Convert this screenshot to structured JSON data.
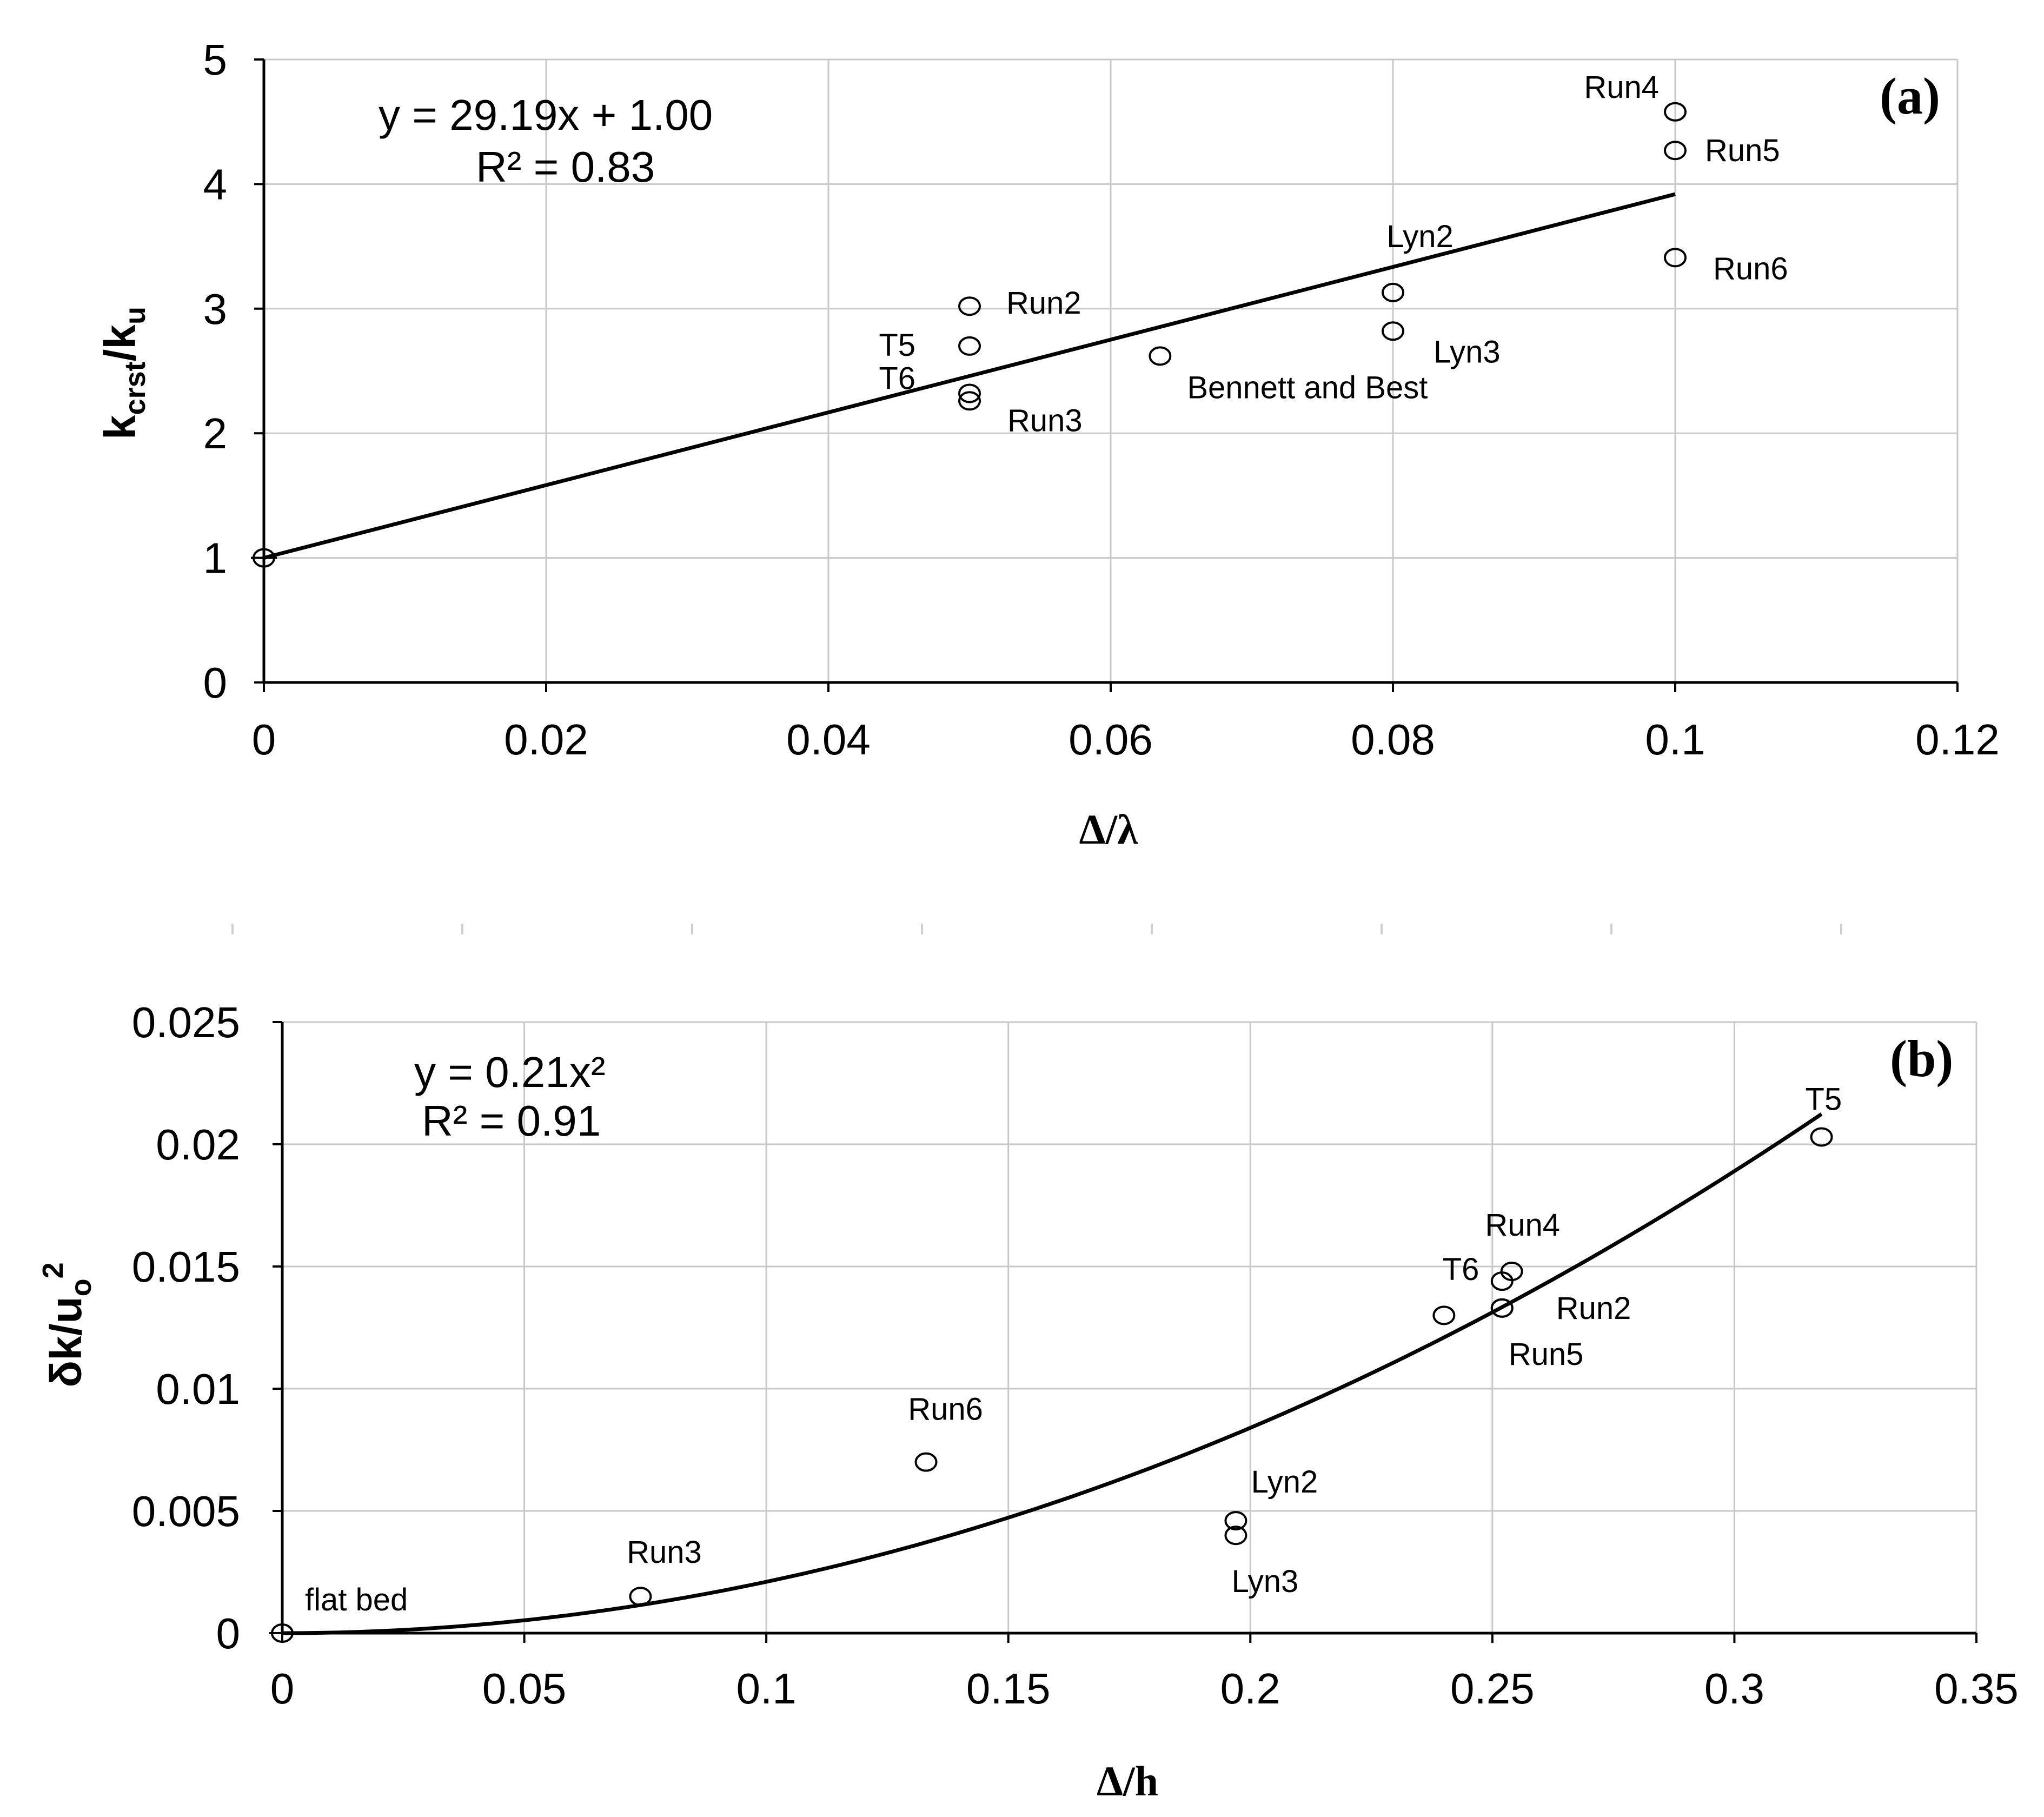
{
  "chart_data": [
    {
      "type": "scatter",
      "panel_label": "(a)",
      "xlabel": "Δ/λ",
      "ylabel_main": "k",
      "ylabel_sub1": "crst",
      "ylabel_mid": "/k",
      "ylabel_sub2": "u",
      "xlim": [
        0,
        0.12
      ],
      "ylim": [
        0,
        5
      ],
      "x_ticks": [
        0,
        0.02,
        0.04,
        0.06,
        0.08,
        0.1,
        0.12
      ],
      "x_tick_labels": [
        "0",
        "0.02",
        "0.04",
        "0.06",
        "0.08",
        "0.1",
        "0.12"
      ],
      "y_ticks": [
        0,
        1,
        2,
        3,
        4,
        5
      ],
      "y_tick_labels": [
        "0",
        "1",
        "2",
        "3",
        "4",
        "5"
      ],
      "equation": "y = 29.19x + 1.00",
      "r_squared": "R² = 0.83",
      "fit": {
        "kind": "linear",
        "slope": 29.19,
        "intercept": 1.0,
        "x_range": [
          0,
          0.1
        ]
      },
      "points": [
        {
          "x": 0.0,
          "y": 1.0,
          "label": ""
        },
        {
          "x": 0.05,
          "y": 3.02,
          "label": "Run2"
        },
        {
          "x": 0.05,
          "y": 2.7,
          "label": "T5"
        },
        {
          "x": 0.05,
          "y": 2.32,
          "label": "T6"
        },
        {
          "x": 0.05,
          "y": 2.26,
          "label": "Run3"
        },
        {
          "x": 0.0635,
          "y": 2.62,
          "label": "Bennett and Best"
        },
        {
          "x": 0.08,
          "y": 3.13,
          "label": "Lyn2"
        },
        {
          "x": 0.08,
          "y": 2.82,
          "label": "Lyn3"
        },
        {
          "x": 0.1,
          "y": 4.58,
          "label": "Run4"
        },
        {
          "x": 0.1,
          "y": 4.27,
          "label": "Run5"
        },
        {
          "x": 0.1,
          "y": 3.41,
          "label": "Run6"
        }
      ]
    },
    {
      "type": "scatter",
      "panel_label": "(b)",
      "xlabel": "Δ/h",
      "ylabel_main": "δk/u",
      "ylabel_sub1": "o",
      "ylabel_sup": "2",
      "xlim": [
        0,
        0.35
      ],
      "ylim": [
        0,
        0.025
      ],
      "x_ticks": [
        0,
        0.05,
        0.1,
        0.15,
        0.2,
        0.25,
        0.3,
        0.35
      ],
      "x_tick_labels": [
        "0",
        "0.05",
        "0.1",
        "0.15",
        "0.2",
        "0.25",
        "0.3",
        "0.35"
      ],
      "y_ticks": [
        0,
        0.005,
        0.01,
        0.015,
        0.02,
        0.025
      ],
      "y_tick_labels": [
        "0",
        "0.005",
        "0.01",
        "0.015",
        "0.02",
        "0.025"
      ],
      "equation": "y = 0.21x²",
      "r_squared": "R² = 0.91",
      "fit": {
        "kind": "quadratic",
        "a": 0.21,
        "x_range": [
          0,
          0.318
        ]
      },
      "points": [
        {
          "x": 0.0,
          "y": 0.0,
          "label": "flat bed"
        },
        {
          "x": 0.074,
          "y": 0.0015,
          "label": "Run3"
        },
        {
          "x": 0.133,
          "y": 0.007,
          "label": "Run6"
        },
        {
          "x": 0.197,
          "y": 0.0046,
          "label": "Lyn2"
        },
        {
          "x": 0.197,
          "y": 0.004,
          "label": "Lyn3"
        },
        {
          "x": 0.24,
          "y": 0.013,
          "label": ""
        },
        {
          "x": 0.252,
          "y": 0.0144,
          "label": "T6"
        },
        {
          "x": 0.254,
          "y": 0.0148,
          "label": "Run4"
        },
        {
          "x": 0.252,
          "y": 0.0133,
          "label": "Run2"
        },
        {
          "x": 0.252,
          "y": 0.0133,
          "label": "Run5"
        },
        {
          "x": 0.318,
          "y": 0.0203,
          "label": "T5"
        }
      ]
    }
  ]
}
